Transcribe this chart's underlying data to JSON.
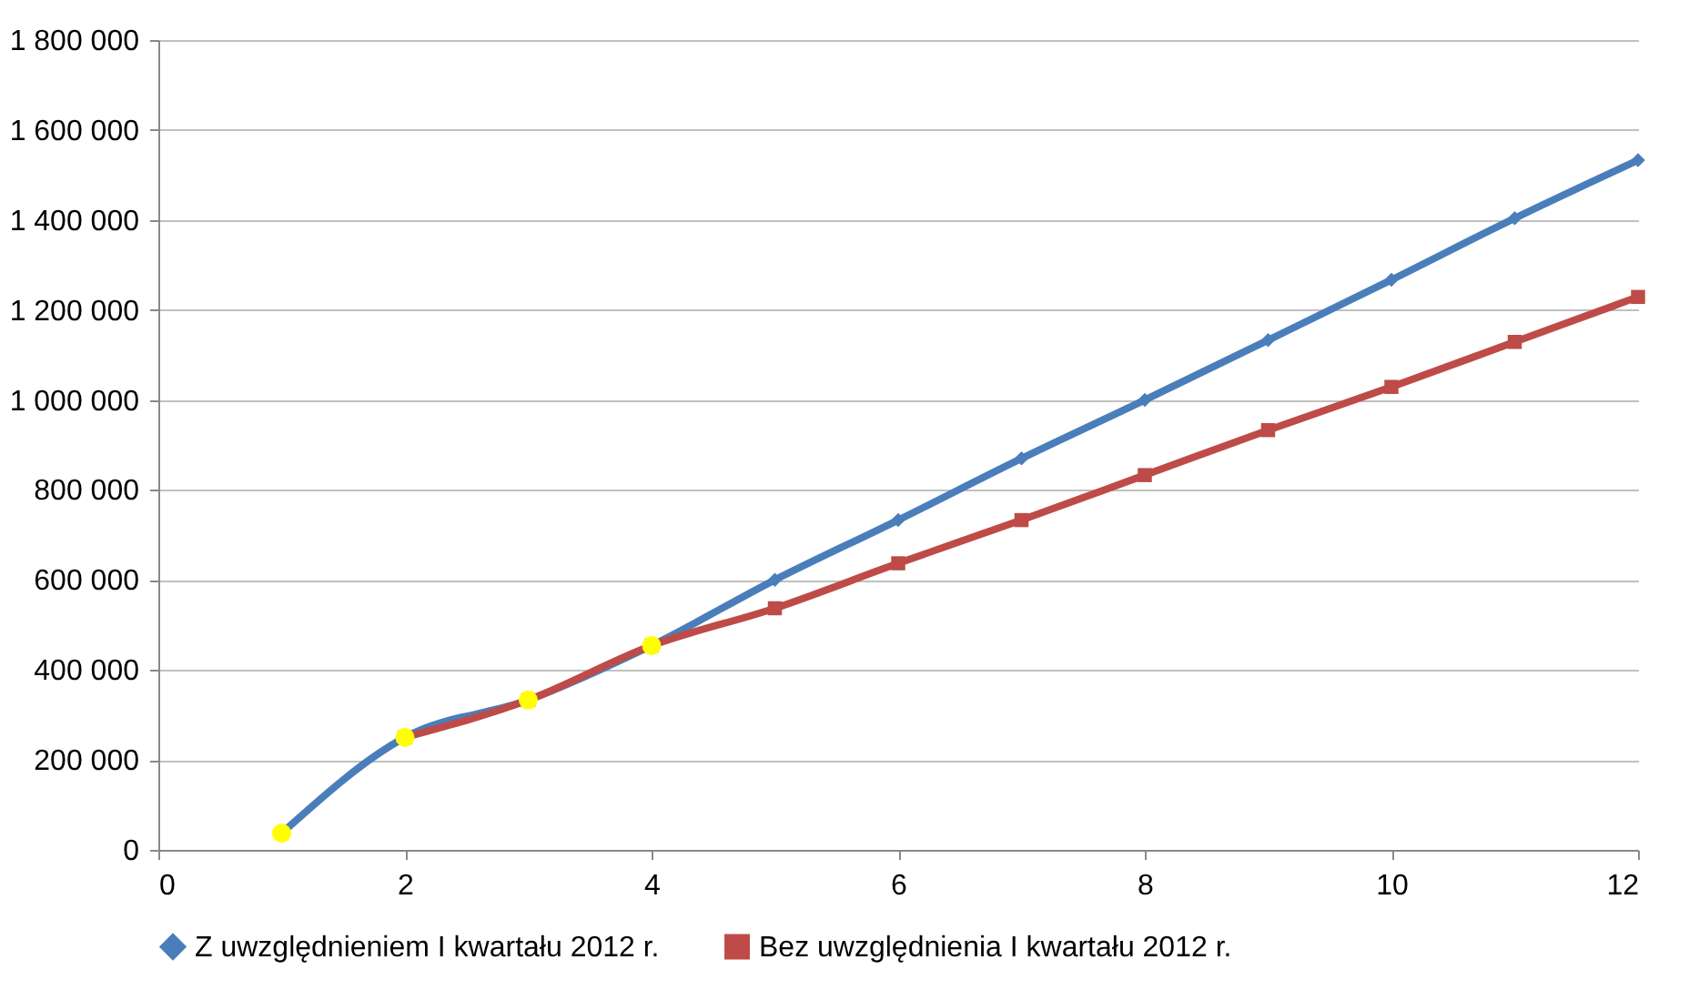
{
  "chart_data": {
    "type": "line",
    "x": [
      1,
      2,
      3,
      4,
      5,
      6,
      7,
      8,
      9,
      10,
      11,
      12
    ],
    "series": [
      {
        "name": "Z uwzględnieniem I kwartału 2012 r.",
        "color": "#4a7ebb",
        "marker": "diamond",
        "values": [
          37000,
          250000,
          333000,
          454000,
          600000,
          733000,
          870000,
          1000000,
          1133000,
          1267000,
          1404000,
          1533000
        ]
      },
      {
        "name": "Bez uwzględnienia I kwartału 2012 r.",
        "color": "#be4b48",
        "marker": "square",
        "values": [
          null,
          250000,
          333000,
          454000,
          537000,
          637000,
          733000,
          833000,
          933000,
          1029000,
          1129000,
          1229000
        ]
      },
      {
        "type": "scatter",
        "color": "#ffff00",
        "marker": "circle",
        "x": [
          1,
          2,
          3,
          4
        ],
        "values": [
          37000,
          250000,
          333000,
          454000
        ]
      }
    ],
    "xlim": [
      0,
      12
    ],
    "xticks": [
      0,
      2,
      4,
      6,
      8,
      10,
      12
    ],
    "ylim": [
      0,
      1800000
    ],
    "yticks": [
      {
        "value": 0,
        "label": "0"
      },
      {
        "value": 200000,
        "label": "200 000"
      },
      {
        "value": 400000,
        "label": "400 000"
      },
      {
        "value": 600000,
        "label": "600 000"
      },
      {
        "value": 800000,
        "label": "800 000"
      },
      {
        "value": 1000000,
        "label": "1 000 000"
      },
      {
        "value": 1200000,
        "label": "1 200 000"
      },
      {
        "value": 1400000,
        "label": "1 400 000"
      },
      {
        "value": 1600000,
        "label": "1 600 000"
      },
      {
        "value": 1800000,
        "label": "1 800 000"
      }
    ],
    "grid": "y",
    "legend": "bottom",
    "line_style": "solid"
  }
}
